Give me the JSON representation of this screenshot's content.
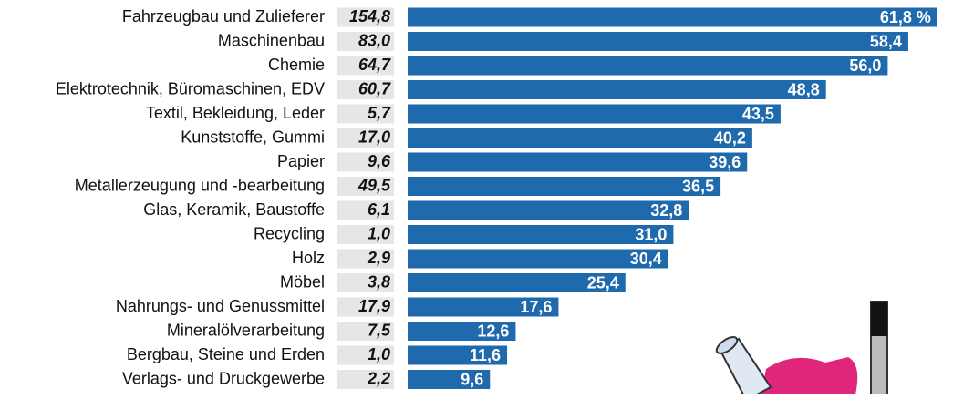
{
  "chart_data": {
    "type": "bar",
    "orientation": "horizontal",
    "color": "#1f6aad",
    "categories": [
      "Fahrzeugbau und Zulieferer",
      "Maschinenbau",
      "Chemie",
      "Elektrotechnik, Büromaschinen, EDV",
      "Textil, Bekleidung, Leder",
      "Kunststoffe, Gummi",
      "Papier",
      "Metallerzeugung und -bearbeitung",
      "Glas, Keramik, Baustoffe",
      "Recycling",
      "Holz",
      "Möbel",
      "Nahrungs- und Genussmittel",
      "Mineralölverarbeitung",
      "Bergbau, Steine und Erden",
      "Verlags- und Druckgewerbe"
    ],
    "values": [
      61.8,
      58.4,
      56.0,
      48.8,
      43.5,
      40.2,
      39.6,
      36.5,
      32.8,
      31.0,
      30.4,
      25.4,
      17.6,
      12.6,
      11.6,
      9.6
    ],
    "value_labels": [
      "61,8 %",
      "58,4",
      "56,0",
      "48,8",
      "43,5",
      "40,2",
      "39,6",
      "36,5",
      "32,8",
      "31,0",
      "30,4",
      "25,4",
      "17,6",
      "12,6",
      "11,6",
      "9,6"
    ],
    "side_column": {
      "values": [
        154.8,
        83.0,
        64.7,
        60.7,
        5.7,
        17.0,
        9.6,
        49.5,
        6.1,
        1.0,
        2.9,
        3.8,
        17.9,
        7.5,
        1.0,
        2.2
      ],
      "value_labels": [
        "154,8",
        "83,0",
        "64,7",
        "60,7",
        "5,7",
        "17,0",
        "9,6",
        "49,5",
        "6,1",
        "1,0",
        "2,9",
        "3,8",
        "17,9",
        "7,5",
        "1,0",
        "2,2"
      ]
    }
  }
}
